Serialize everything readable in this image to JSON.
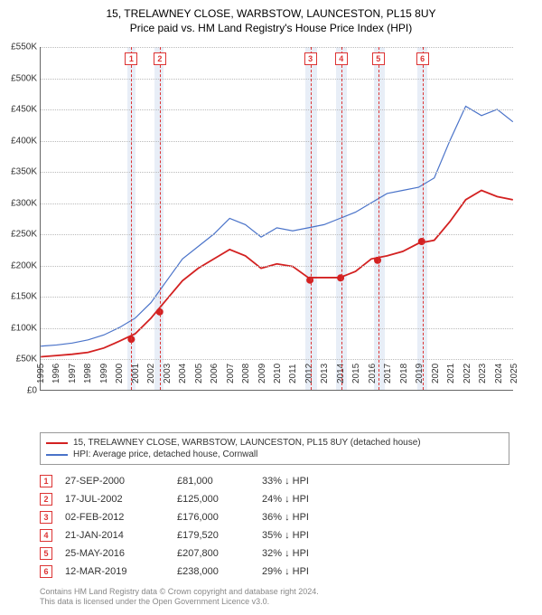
{
  "title_line1": "15, TRELAWNEY CLOSE, WARBSTOW, LAUNCESTON, PL15 8UY",
  "title_line2": "Price paid vs. HM Land Registry's House Price Index (HPI)",
  "chart": {
    "type": "line",
    "background_color": "#ffffff",
    "grid_color": "#bbbbbb",
    "axis_color": "#666666",
    "ylim": [
      0,
      550000
    ],
    "ytick_step": 50000,
    "yticks": [
      "£0",
      "£50K",
      "£100K",
      "£150K",
      "£200K",
      "£250K",
      "£300K",
      "£350K",
      "£400K",
      "£450K",
      "£500K",
      "£550K"
    ],
    "xlim": [
      1995,
      2025
    ],
    "xticks": [
      1995,
      1996,
      1997,
      1998,
      1999,
      2000,
      2001,
      2002,
      2003,
      2004,
      2005,
      2006,
      2007,
      2008,
      2009,
      2010,
      2011,
      2012,
      2013,
      2014,
      2015,
      2016,
      2017,
      2018,
      2019,
      2020,
      2021,
      2022,
      2023,
      2024,
      2025
    ],
    "hpi_color": "#4a73c9",
    "price_color": "#d32121",
    "band_color": "#e8eef7",
    "marker_border": "#d33333",
    "line_width_hpi": 1.2,
    "line_width_price": 1.8,
    "label_fontsize": 10,
    "bands": [
      {
        "start": 2000.5,
        "end": 2001.0
      },
      {
        "start": 2002.2,
        "end": 2002.8
      },
      {
        "start": 2011.8,
        "end": 2012.5
      },
      {
        "start": 2013.7,
        "end": 2014.4
      },
      {
        "start": 2016.1,
        "end": 2016.8
      },
      {
        "start": 2018.9,
        "end": 2019.5
      }
    ],
    "markers": [
      {
        "n": "1",
        "x": 2000.75,
        "y": 81000
      },
      {
        "n": "2",
        "x": 2002.55,
        "y": 125000
      },
      {
        "n": "3",
        "x": 2012.1,
        "y": 176000
      },
      {
        "n": "4",
        "x": 2014.05,
        "y": 179520
      },
      {
        "n": "5",
        "x": 2016.4,
        "y": 207800
      },
      {
        "n": "6",
        "x": 2019.2,
        "y": 238000
      }
    ],
    "hpi_series": [
      [
        1995,
        70000
      ],
      [
        1996,
        72000
      ],
      [
        1997,
        75000
      ],
      [
        1998,
        80000
      ],
      [
        1999,
        88000
      ],
      [
        2000,
        100000
      ],
      [
        2001,
        115000
      ],
      [
        2002,
        140000
      ],
      [
        2003,
        175000
      ],
      [
        2004,
        210000
      ],
      [
        2005,
        230000
      ],
      [
        2006,
        250000
      ],
      [
        2007,
        275000
      ],
      [
        2008,
        265000
      ],
      [
        2009,
        245000
      ],
      [
        2010,
        260000
      ],
      [
        2011,
        255000
      ],
      [
        2012,
        260000
      ],
      [
        2013,
        265000
      ],
      [
        2014,
        275000
      ],
      [
        2015,
        285000
      ],
      [
        2016,
        300000
      ],
      [
        2017,
        315000
      ],
      [
        2018,
        320000
      ],
      [
        2019,
        325000
      ],
      [
        2020,
        340000
      ],
      [
        2021,
        400000
      ],
      [
        2022,
        455000
      ],
      [
        2023,
        440000
      ],
      [
        2024,
        450000
      ],
      [
        2025,
        430000
      ]
    ],
    "price_series": [
      [
        1995,
        53000
      ],
      [
        1996,
        55000
      ],
      [
        1997,
        57000
      ],
      [
        1998,
        60000
      ],
      [
        1999,
        67000
      ],
      [
        2000,
        78000
      ],
      [
        2001,
        90000
      ],
      [
        2002,
        115000
      ],
      [
        2003,
        145000
      ],
      [
        2004,
        175000
      ],
      [
        2005,
        195000
      ],
      [
        2006,
        210000
      ],
      [
        2007,
        225000
      ],
      [
        2008,
        215000
      ],
      [
        2009,
        195000
      ],
      [
        2010,
        202000
      ],
      [
        2011,
        198000
      ],
      [
        2012,
        180000
      ],
      [
        2013,
        180000
      ],
      [
        2014,
        180000
      ],
      [
        2015,
        190000
      ],
      [
        2016,
        210000
      ],
      [
        2017,
        215000
      ],
      [
        2018,
        222000
      ],
      [
        2019,
        235000
      ],
      [
        2020,
        240000
      ],
      [
        2021,
        270000
      ],
      [
        2022,
        305000
      ],
      [
        2023,
        320000
      ],
      [
        2024,
        310000
      ],
      [
        2025,
        305000
      ]
    ]
  },
  "legend": {
    "items": [
      {
        "color": "#d32121",
        "label": "15, TRELAWNEY CLOSE, WARBSTOW, LAUNCESTON, PL15 8UY (detached house)"
      },
      {
        "color": "#4a73c9",
        "label": "HPI: Average price, detached house, Cornwall"
      }
    ]
  },
  "sales": [
    {
      "n": "1",
      "date": "27-SEP-2000",
      "price": "£81,000",
      "delta": "33% ↓ HPI"
    },
    {
      "n": "2",
      "date": "17-JUL-2002",
      "price": "£125,000",
      "delta": "24% ↓ HPI"
    },
    {
      "n": "3",
      "date": "02-FEB-2012",
      "price": "£176,000",
      "delta": "36% ↓ HPI"
    },
    {
      "n": "4",
      "date": "21-JAN-2014",
      "price": "£179,520",
      "delta": "35% ↓ HPI"
    },
    {
      "n": "5",
      "date": "25-MAY-2016",
      "price": "£207,800",
      "delta": "32% ↓ HPI"
    },
    {
      "n": "6",
      "date": "12-MAR-2019",
      "price": "£238,000",
      "delta": "29% ↓ HPI"
    }
  ],
  "footer": {
    "line1": "Contains HM Land Registry data © Crown copyright and database right 2024.",
    "line2": "This data is licensed under the Open Government Licence v3.0."
  }
}
